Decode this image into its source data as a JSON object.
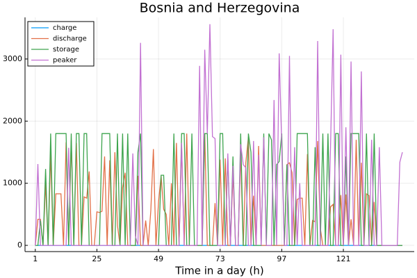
{
  "chart_data": {
    "type": "line",
    "title": "Bosnia and Herzegovina",
    "x_label": "Time in a day (h)",
    "x": [
      1,
      2,
      3,
      4,
      5,
      6,
      7,
      8,
      9,
      10,
      11,
      12,
      13,
      14,
      15,
      16,
      17,
      18,
      19,
      20,
      21,
      22,
      23,
      24,
      25,
      26,
      27,
      28,
      29,
      30,
      31,
      32,
      33,
      34,
      35,
      36,
      37,
      38,
      39,
      40,
      41,
      42,
      43,
      44,
      45,
      46,
      47,
      48,
      49,
      50,
      51,
      52,
      53,
      54,
      55,
      56,
      57,
      58,
      59,
      60,
      61,
      62,
      63,
      64,
      65,
      66,
      67,
      68,
      69,
      70,
      71,
      72,
      73,
      74,
      75,
      76,
      77,
      78,
      79,
      80,
      81,
      82,
      83,
      84,
      85,
      86,
      87,
      88,
      89,
      90,
      91,
      92,
      93,
      94,
      95,
      96,
      97,
      98,
      99,
      100,
      101,
      102,
      103,
      104,
      105,
      106,
      107,
      108,
      109,
      110,
      111,
      112,
      113,
      114,
      115,
      116,
      117,
      118,
      119,
      120,
      121,
      122,
      123,
      124,
      125,
      126,
      127,
      128,
      129,
      130,
      131,
      132,
      133,
      134,
      135,
      136,
      137,
      138,
      139,
      140,
      141,
      142,
      143,
      144
    ],
    "series": [
      {
        "name": "charge",
        "color": "#009af9",
        "values": [
          0,
          0,
          0,
          0,
          0,
          0,
          0,
          0,
          0,
          0,
          0,
          0,
          0,
          0,
          0,
          0,
          0,
          0,
          0,
          0,
          0,
          0,
          0,
          0,
          0,
          0,
          0,
          0,
          0,
          0,
          0,
          0,
          0,
          0,
          0,
          0,
          0,
          0,
          0,
          0,
          0,
          0,
          0,
          0,
          0,
          0,
          0,
          0,
          0,
          0,
          0,
          0,
          0,
          0,
          0,
          0,
          0,
          0,
          0,
          0,
          0,
          0,
          0,
          0,
          0,
          0,
          0,
          0,
          0,
          0,
          0,
          0,
          0,
          0,
          0,
          0,
          0,
          0,
          0,
          0,
          0,
          0,
          0,
          0,
          0,
          0,
          0,
          0,
          0,
          0,
          0,
          0,
          0,
          0,
          0,
          0,
          0,
          0,
          0,
          0,
          0,
          0,
          0,
          0,
          0,
          0,
          0,
          0,
          0,
          0,
          0,
          0,
          0,
          0,
          0,
          0,
          0,
          0,
          0,
          0,
          0,
          0,
          0,
          0,
          0,
          0,
          0,
          0,
          0,
          0,
          0,
          0,
          0,
          0,
          0,
          0,
          0,
          0,
          0,
          0,
          0,
          0,
          0,
          0
        ]
      },
      {
        "name": "discharge",
        "color": "#e26f46",
        "values": [
          0,
          420,
          420,
          0,
          1000,
          0,
          1480,
          0,
          830,
          830,
          830,
          0,
          1660,
          0,
          1690,
          0,
          1650,
          0,
          0,
          780,
          760,
          1190,
          0,
          0,
          540,
          530,
          550,
          1430,
          0,
          1370,
          0,
          1500,
          320,
          0,
          930,
          1170,
          0,
          0,
          0,
          0,
          1120,
          0,
          0,
          400,
          0,
          560,
          1550,
          0,
          700,
          1120,
          580,
          500,
          0,
          1000,
          0,
          1650,
          0,
          1600,
          0,
          1800,
          0,
          0,
          0,
          0,
          0,
          0,
          1800,
          0,
          0,
          0,
          680,
          0,
          1380,
          0,
          1400,
          0,
          0,
          1150,
          0,
          0,
          1480,
          0,
          1330,
          1740,
          0,
          800,
          0,
          1600,
          0,
          0,
          0,
          0,
          0,
          0,
          0,
          0,
          0,
          0,
          1300,
          1330,
          1170,
          0,
          740,
          760,
          760,
          0,
          1470,
          0,
          400,
          380,
          1680,
          280,
          0,
          0,
          0,
          620,
          660,
          0,
          0,
          810,
          0,
          820,
          0,
          420,
          0,
          1700,
          0,
          1330,
          0,
          830,
          800,
          0,
          700,
          0,
          0,
          0,
          0,
          0,
          0,
          0,
          0,
          0,
          0,
          0
        ]
      },
      {
        "name": "storage",
        "color": "#3da44d",
        "values": [
          0,
          0,
          400,
          0,
          1230,
          0,
          1800,
          0,
          1800,
          1800,
          1800,
          1800,
          1800,
          0,
          1800,
          0,
          1800,
          1800,
          0,
          1800,
          1800,
          0,
          0,
          0,
          0,
          0,
          1800,
          1800,
          1800,
          1800,
          0,
          0,
          1800,
          0,
          1800,
          0,
          1800,
          0,
          0,
          0,
          1500,
          1800,
          0,
          0,
          0,
          0,
          0,
          0,
          0,
          1130,
          1130,
          0,
          0,
          0,
          1800,
          0,
          0,
          1800,
          1800,
          0,
          0,
          1800,
          0,
          0,
          0,
          0,
          1800,
          1800,
          0,
          0,
          0,
          0,
          1800,
          1800,
          0,
          1430,
          0,
          1430,
          0,
          0,
          1800,
          0,
          0,
          1800,
          1500,
          0,
          0,
          0,
          0,
          1800,
          0,
          1800,
          1700,
          0,
          1300,
          1350,
          1800,
          0,
          1300,
          0,
          0,
          0,
          1800,
          1800,
          1800,
          1800,
          1800,
          0,
          0,
          1580,
          0,
          0,
          1800,
          0,
          1800,
          0,
          0,
          1800,
          1800,
          0,
          0,
          1430,
          0,
          1800,
          1800,
          1800,
          1800,
          0,
          0,
          1800,
          0,
          0,
          1800,
          0,
          0,
          0,
          0,
          0,
          0,
          0,
          0,
          0,
          0,
          0
        ]
      },
      {
        "name": "peaker",
        "color": "#c271d2",
        "values": [
          0,
          1310,
          0,
          0,
          0,
          0,
          0,
          0,
          0,
          0,
          0,
          0,
          0,
          1570,
          0,
          0,
          0,
          0,
          0,
          0,
          0,
          0,
          0,
          0,
          0,
          0,
          0,
          0,
          0,
          0,
          0,
          0,
          0,
          0,
          0,
          0,
          0,
          0,
          1480,
          150,
          0,
          3260,
          0,
          0,
          0,
          0,
          0,
          0,
          0,
          0,
          0,
          0,
          0,
          0,
          0,
          0,
          0,
          1650,
          0,
          0,
          0,
          0,
          0,
          0,
          2890,
          0,
          3150,
          1800,
          3560,
          1750,
          1720,
          0,
          0,
          0,
          0,
          1480,
          0,
          1280,
          0,
          0,
          1630,
          1300,
          1250,
          0,
          0,
          1680,
          0,
          1460,
          0,
          1740,
          0,
          0,
          0,
          2340,
          0,
          3090,
          1600,
          0,
          0,
          3050,
          0,
          1580,
          0,
          1000,
          0,
          0,
          0,
          0,
          0,
          0,
          3290,
          0,
          0,
          0,
          0,
          1600,
          3480,
          0,
          0,
          3070,
          0,
          1900,
          0,
          2960,
          0,
          0,
          0,
          2800,
          0,
          0,
          0,
          1700,
          0,
          0,
          1580,
          0,
          0,
          0,
          0,
          0,
          0,
          0,
          1340,
          1500
        ]
      }
    ],
    "xlim": [
      -3,
      148.6
    ],
    "ylim": [
      -100,
      3670
    ],
    "xticks": [
      1,
      25,
      49,
      73,
      97,
      121
    ],
    "yticks": [
      0,
      1000,
      2000,
      3000
    ],
    "grid": true,
    "legend": "top-left"
  }
}
